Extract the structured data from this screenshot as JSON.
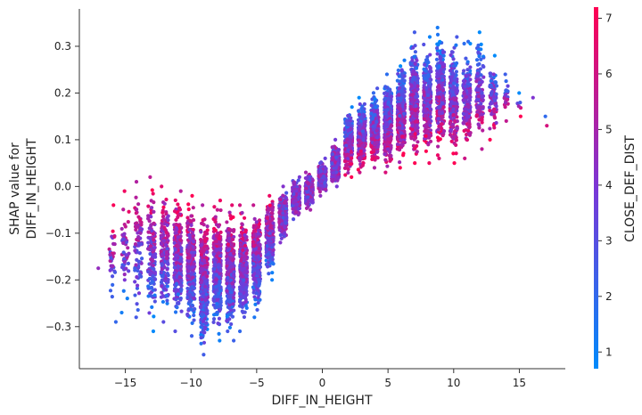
{
  "chart_data": {
    "type": "scatter",
    "title": "",
    "xlabel": "DIFF_IN_HEIGHT",
    "ylabel_lines": [
      "SHAP value for",
      "DIFF_IN_HEIGHT"
    ],
    "xlim": [
      -18.5,
      18.5
    ],
    "ylim": [
      -0.39,
      0.38
    ],
    "xticks": [
      -15,
      -10,
      -5,
      0,
      5,
      10,
      15
    ],
    "xtick_labels": [
      "−15",
      "−10",
      "−5",
      "0",
      "5",
      "10",
      "15"
    ],
    "yticks": [
      -0.3,
      -0.2,
      -0.1,
      0.0,
      0.1,
      0.2,
      0.3
    ],
    "ytick_labels": [
      "−0.3",
      "−0.2",
      "−0.1",
      "0.0",
      "0.1",
      "0.2",
      "0.3"
    ],
    "grid": false,
    "colorbar": {
      "label": "CLOSE_DEF_DIST",
      "range": [
        0.7,
        7.2
      ],
      "ticks": [
        1,
        2,
        3,
        4,
        5,
        6,
        7
      ],
      "tick_labels": [
        "1",
        "2",
        "3",
        "4",
        "5",
        "6",
        "7"
      ],
      "low_color": "#008afb",
      "mid_color": "#7a36d6",
      "high_color": "#ff0052"
    },
    "columns": [
      {
        "x": -17,
        "min": -0.175,
        "max": -0.175,
        "mean": -0.175,
        "n": 1
      },
      {
        "x": -16,
        "min": -0.29,
        "max": -0.04,
        "mean": -0.16,
        "n": 32
      },
      {
        "x": -15,
        "min": -0.27,
        "max": -0.01,
        "mean": -0.15,
        "n": 50
      },
      {
        "x": -14,
        "min": -0.28,
        "max": 0.01,
        "mean": -0.14,
        "n": 80
      },
      {
        "x": -13,
        "min": -0.31,
        "max": 0.02,
        "mean": -0.15,
        "n": 130
      },
      {
        "x": -12,
        "min": -0.29,
        "max": 0.0,
        "mean": -0.15,
        "n": 180
      },
      {
        "x": -11,
        "min": -0.31,
        "max": -0.01,
        "mean": -0.17,
        "n": 260
      },
      {
        "x": -10,
        "min": -0.32,
        "max": -0.02,
        "mean": -0.18,
        "n": 300
      },
      {
        "x": -9,
        "min": -0.36,
        "max": -0.04,
        "mean": -0.2,
        "n": 340
      },
      {
        "x": -8,
        "min": -0.33,
        "max": -0.03,
        "mean": -0.19,
        "n": 360
      },
      {
        "x": -7,
        "min": -0.33,
        "max": -0.04,
        "mean": -0.18,
        "n": 360
      },
      {
        "x": -6,
        "min": -0.31,
        "max": -0.04,
        "mean": -0.17,
        "n": 340
      },
      {
        "x": -5,
        "min": -0.28,
        "max": -0.04,
        "mean": -0.15,
        "n": 320
      },
      {
        "x": -4,
        "min": -0.2,
        "max": -0.02,
        "mean": -0.1,
        "n": 300
      },
      {
        "x": -3,
        "min": -0.12,
        "max": 0.0,
        "mean": -0.05,
        "n": 280
      },
      {
        "x": -2,
        "min": -0.07,
        "max": 0.02,
        "mean": -0.02,
        "n": 260
      },
      {
        "x": -1,
        "min": -0.05,
        "max": 0.03,
        "mean": -0.01,
        "n": 250
      },
      {
        "x": 0,
        "min": -0.02,
        "max": 0.06,
        "mean": 0.02,
        "n": 260
      },
      {
        "x": 1,
        "min": 0.0,
        "max": 0.1,
        "mean": 0.04,
        "n": 280
      },
      {
        "x": 2,
        "min": 0.02,
        "max": 0.17,
        "mean": 0.08,
        "n": 300
      },
      {
        "x": 3,
        "min": 0.03,
        "max": 0.19,
        "mean": 0.1,
        "n": 320
      },
      {
        "x": 4,
        "min": 0.04,
        "max": 0.21,
        "mean": 0.11,
        "n": 340
      },
      {
        "x": 5,
        "min": 0.03,
        "max": 0.24,
        "mean": 0.12,
        "n": 340
      },
      {
        "x": 6,
        "min": 0.04,
        "max": 0.27,
        "mean": 0.14,
        "n": 340
      },
      {
        "x": 7,
        "min": 0.05,
        "max": 0.33,
        "mean": 0.17,
        "n": 320
      },
      {
        "x": 8,
        "min": 0.05,
        "max": 0.32,
        "mean": 0.17,
        "n": 300
      },
      {
        "x": 9,
        "min": 0.06,
        "max": 0.34,
        "mean": 0.18,
        "n": 270
      },
      {
        "x": 10,
        "min": 0.05,
        "max": 0.32,
        "mean": 0.17,
        "n": 230
      },
      {
        "x": 11,
        "min": 0.06,
        "max": 0.31,
        "mean": 0.17,
        "n": 180
      },
      {
        "x": 12,
        "min": 0.08,
        "max": 0.33,
        "mean": 0.17,
        "n": 130
      },
      {
        "x": 13,
        "min": 0.1,
        "max": 0.28,
        "mean": 0.17,
        "n": 80
      },
      {
        "x": 14,
        "min": 0.14,
        "max": 0.24,
        "mean": 0.19,
        "n": 20
      },
      {
        "x": 15,
        "min": 0.15,
        "max": 0.2,
        "mean": 0.18,
        "n": 6
      },
      {
        "x": 16,
        "min": 0.19,
        "max": 0.19,
        "mean": 0.19,
        "n": 1
      },
      {
        "x": 17,
        "min": 0.13,
        "max": 0.15,
        "mean": 0.14,
        "n": 2
      }
    ]
  }
}
